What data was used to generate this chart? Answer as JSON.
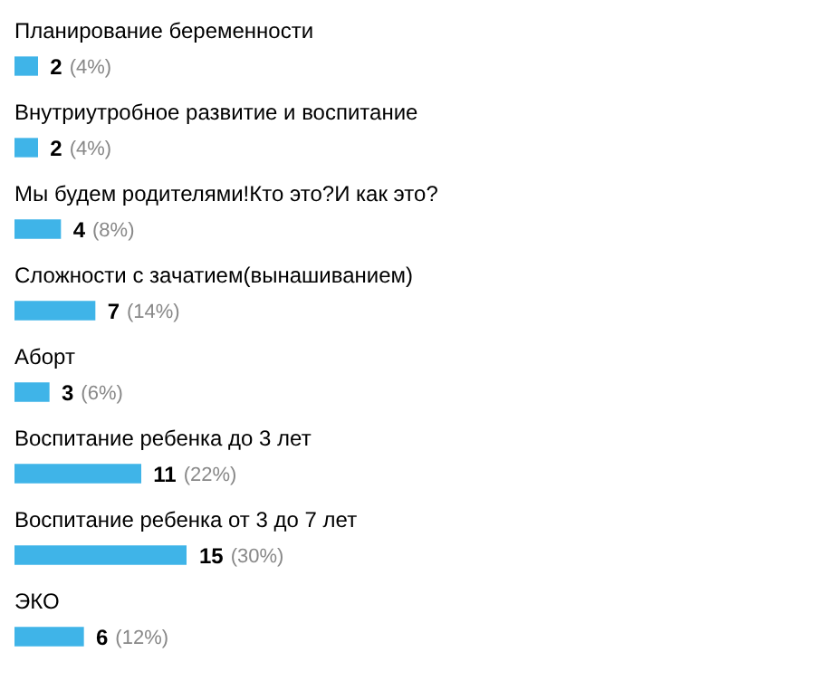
{
  "chart_data": {
    "type": "bar",
    "orientation": "horizontal",
    "categories": [
      "Планирование беременности",
      "Внутриутробное развитие и воспитание",
      "Мы будем родителями!Кто это?И как это?",
      "Сложности с зачатием(вынашиванием)",
      "Аборт",
      "Воспитание ребенка до 3 лет",
      "Воспитание ребенка от 3 до 7 лет",
      "ЭКО"
    ],
    "values": [
      2,
      2,
      4,
      7,
      3,
      11,
      15,
      6
    ],
    "color": "#3fb4e8",
    "legend": false,
    "data_labels": true,
    "annotations": [
      {
        "text": "(4%)",
        "x": 2,
        "y": "Планирование беременности"
      },
      {
        "text": "(4%)",
        "x": 2,
        "y": "Внутриутробное развитие и воспитание"
      },
      {
        "text": "(8%)",
        "x": 4,
        "y": "Мы будем родителями!Кто это?И как это?"
      },
      {
        "text": "(14%)",
        "x": 7,
        "y": "Сложности с зачатием(вынашиванием)"
      },
      {
        "text": "(6%)",
        "x": 3,
        "y": "Аборт"
      },
      {
        "text": "(22%)",
        "x": 11,
        "y": "Воспитание ребенка до 3 лет"
      },
      {
        "text": "(30%)",
        "x": 15,
        "y": "Воспитание ребенка от 3 до 7 лет"
      },
      {
        "text": "(12%)",
        "x": 6,
        "y": "ЭКО"
      }
    ]
  }
}
